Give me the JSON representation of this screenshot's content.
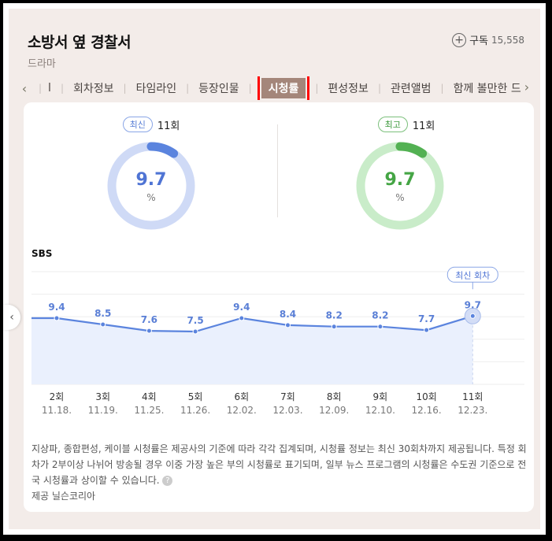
{
  "header": {
    "title": "소방서 옆 경찰서",
    "category": "드라마",
    "subscribe_label": "구독",
    "subscribe_count": "15,558"
  },
  "tabs": {
    "prev_arrow": "‹",
    "next_arrow": "›",
    "items": [
      "l",
      "회차정보",
      "타임라인",
      "등장인물",
      "시청률",
      "편성정보",
      "관련앨범",
      "함께 볼만한 드"
    ],
    "active_index": 4
  },
  "stats": {
    "latest": {
      "badge": "최신",
      "episode": "11회",
      "value": "9.7",
      "unit": "%",
      "fraction": 0.097,
      "color": "#5b84de",
      "track_color": "#cfdaf6"
    },
    "best": {
      "badge": "최고",
      "episode": "11회",
      "value": "9.7",
      "unit": "%",
      "fraction": 0.097,
      "color": "#53b153",
      "track_color": "#c9ecc9"
    }
  },
  "channel": "SBS",
  "chart_data": {
    "type": "area",
    "series": [
      {
        "values": [
          9.4,
          8.5,
          7.6,
          7.5,
          9.4,
          8.4,
          8.2,
          8.2,
          7.7,
          9.7
        ]
      }
    ],
    "categories": [
      "2회",
      "3회",
      "4회",
      "5회",
      "6회",
      "7회",
      "8회",
      "9회",
      "10회",
      "11회"
    ],
    "dates": [
      "11.18.",
      "11.19.",
      "11.25.",
      "11.26.",
      "12.02.",
      "12.03.",
      "12.09.",
      "12.10.",
      "12.16.",
      "12.23."
    ],
    "highlight_label": "최신 회차",
    "ylim": [
      0,
      16
    ],
    "line_color": "#5b84de",
    "fill_color": "#eaf0fd"
  },
  "side_arrow": "‹",
  "note": {
    "text": "지상파, 종합편성, 케이블 시청률은 제공사의 기준에 따라 각각 집계되며, 시청률 정보는 최신 30회차까지 제공됩니다. 특정 회차가 2부이상 나뉘어 방송될 경우 이중 가장 높은 부의 시청률로 표기되며, 일부 뉴스 프로그램의 시청률은 수도권 기준으로 전국 시청률과 상이할 수 있습니다.",
    "help": "?",
    "source": "제공 닐슨코리아"
  }
}
